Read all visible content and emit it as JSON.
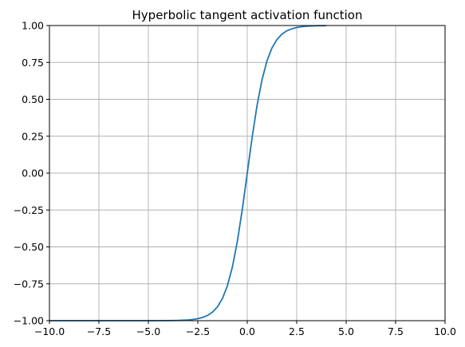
{
  "chart_data": {
    "type": "line",
    "title": "Hyperbolic tangent activation function",
    "xlabel": "",
    "ylabel": "",
    "xlim": [
      -10,
      10
    ],
    "ylim": [
      -1,
      1
    ],
    "grid": true,
    "xticks": [
      -10,
      -7.5,
      -5,
      -2.5,
      0,
      2.5,
      5,
      7.5,
      10
    ],
    "xtick_labels": [
      "−10.0",
      "−7.5",
      "−5.0",
      "−2.5",
      "0.0",
      "2.5",
      "5.0",
      "7.5",
      "10.0"
    ],
    "yticks": [
      -1,
      -0.75,
      -0.5,
      -0.25,
      0,
      0.25,
      0.5,
      0.75,
      1
    ],
    "ytick_labels": [
      "−1.00",
      "−0.75",
      "−0.50",
      "−0.25",
      "0.00",
      "0.25",
      "0.50",
      "0.75",
      "1.00"
    ],
    "series": [
      {
        "color": "#1f77b4",
        "x": [
          -10,
          -8,
          -6,
          -5,
          -4,
          -3.5,
          -3,
          -2.75,
          -2.5,
          -2.25,
          -2,
          -1.75,
          -1.5,
          -1.25,
          -1,
          -0.75,
          -0.5,
          -0.25,
          0,
          0.25,
          0.5,
          0.75,
          1,
          1.25,
          1.5,
          1.75,
          2,
          2.25,
          2.5,
          2.75,
          3,
          3.5,
          4
        ],
        "y": [
          -1,
          -1,
          -1,
          -0.9999,
          -0.9993,
          -0.9982,
          -0.9951,
          -0.9918,
          -0.9866,
          -0.978,
          -0.964,
          -0.9414,
          -0.9051,
          -0.8483,
          -0.7616,
          -0.6351,
          -0.4621,
          -0.2449,
          0,
          0.2449,
          0.4621,
          0.6351,
          0.7616,
          0.8483,
          0.9051,
          0.9414,
          0.964,
          0.978,
          0.9866,
          0.9918,
          0.9951,
          0.9982,
          0.9993
        ]
      }
    ]
  }
}
